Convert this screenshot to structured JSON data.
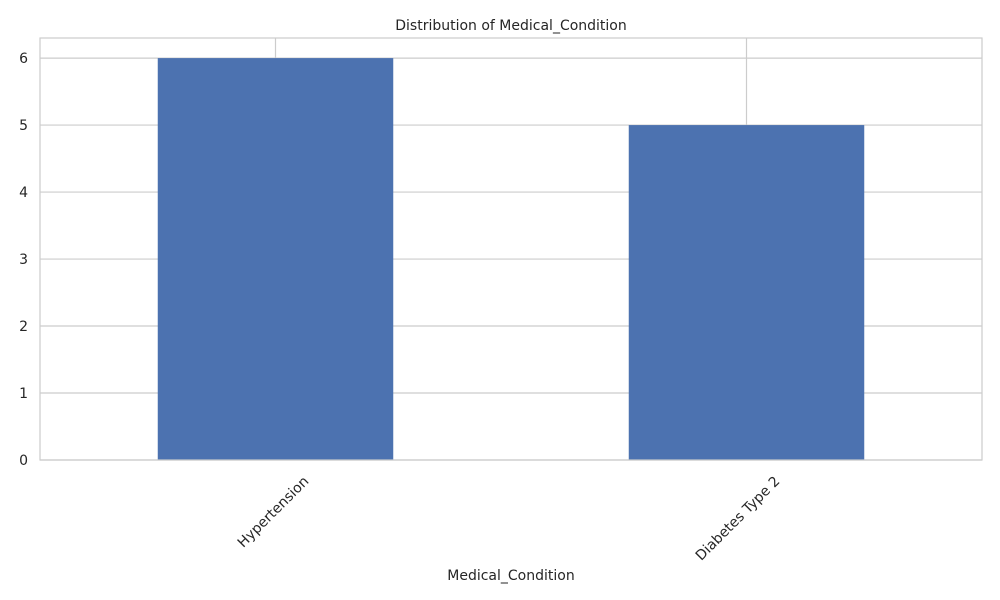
{
  "chart_data": {
    "type": "bar",
    "title": "Distribution of Medical_Condition",
    "xlabel": "Medical_Condition",
    "ylabel": "",
    "categories": [
      "Hypertension",
      "Diabetes Type 2"
    ],
    "values": [
      6,
      5
    ],
    "ylim": [
      0,
      6.3
    ],
    "yticks": [
      0,
      1,
      2,
      3,
      4,
      5,
      6
    ],
    "grid": true,
    "bar_color": "#4c72b0",
    "grid_color": "#cccccc"
  }
}
